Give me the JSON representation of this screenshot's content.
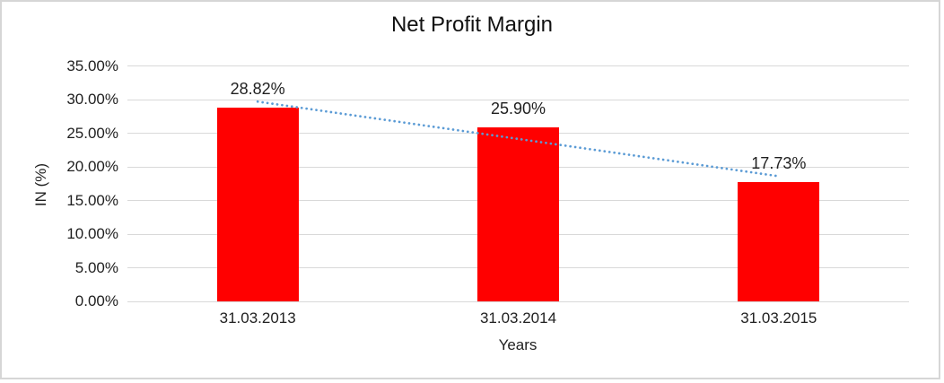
{
  "frame": {
    "border_color": "#d6d6d6",
    "background": "#ffffff"
  },
  "chart_data": {
    "type": "bar",
    "title": "Net Profit Margin",
    "xlabel": "Years",
    "ylabel": "IN (%)",
    "categories": [
      "31.03.2013",
      "31.03.2014",
      "31.03.2015"
    ],
    "values": [
      28.82,
      25.9,
      17.73
    ],
    "data_labels": [
      "28.82%",
      "25.90%",
      "17.73%"
    ],
    "ylim": [
      0,
      35
    ],
    "ytick_step": 5,
    "ytick_labels": [
      "0.00%",
      "5.00%",
      "10.00%",
      "15.00%",
      "20.00%",
      "25.00%",
      "30.00%",
      "35.00%"
    ],
    "grid": true,
    "legend": "none",
    "bar_color": "#ff0000",
    "gridline_color": "#d9d9d9",
    "text_color": "#1f1f1f",
    "trendline": {
      "type": "linear",
      "style": "dotted",
      "color": "#5b9bd5"
    }
  }
}
